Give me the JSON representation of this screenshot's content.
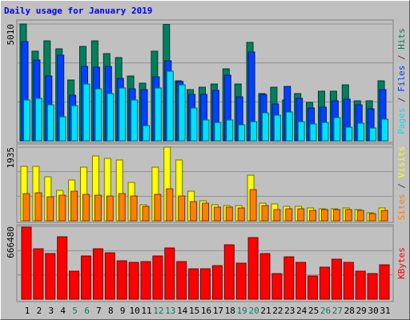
{
  "chart_data": [
    {
      "type": "bar",
      "title": "Daily usage for January 2019",
      "ylim": [
        0,
        5010
      ],
      "yticks": [
        5010
      ],
      "legend_separator": " / ",
      "series": [
        {
          "name": "Hits",
          "color": "#00805c",
          "values": [
            5010,
            3843,
            4289,
            3946,
            2608,
            4049,
            4289,
            3740,
            3569,
            2780,
            2471,
            3843,
            4990,
            2574,
            2196,
            2299,
            2436,
            3088,
            2436,
            4221,
            2025,
            2299,
            1750,
            2025,
            1647,
            2127,
            2127,
            2402,
            1716,
            1716,
            2574
          ]
        },
        {
          "name": "Files",
          "color": "#0040ff",
          "values": [
            4255,
            3466,
            2780,
            3672,
            1956,
            3191,
            3157,
            3191,
            2677,
            2230,
            2196,
            2745,
            3432,
            2539,
            1990,
            1990,
            2162,
            2814,
            1887,
            3809,
            1990,
            1578,
            2333,
            1819,
            1407,
            1441,
            1716,
            1784,
            1544,
            1373,
            2196
          ]
        },
        {
          "name": "Pages",
          "color": "#00e0ff",
          "values": [
            1750,
            1819,
            1544,
            1029,
            1510,
            2436,
            2230,
            2025,
            2265,
            1750,
            652,
            2265,
            2985,
            2402,
            1407,
            892,
            789,
            892,
            686,
            823,
            1201,
            1098,
            1235,
            823,
            721,
            789,
            995,
            583,
            755,
            549,
            926
          ]
        }
      ]
    },
    {
      "type": "bar",
      "ylim": [
        0,
        1935
      ],
      "yticks": [
        1935
      ],
      "legend_separator": " / ",
      "series": [
        {
          "name": "Visits",
          "color": "#ffff00",
          "values": [
            1430,
            1430,
            1157,
            799,
            1073,
            1409,
            1704,
            1641,
            1599,
            1010,
            421,
            1409,
            1935,
            1599,
            778,
            526,
            421,
            400,
            400,
            1199,
            463,
            442,
            379,
            379,
            337,
            316,
            316,
            337,
            295,
            210,
            337
          ]
        },
        {
          "name": "Sites",
          "color": "#ff8000",
          "values": [
            715,
            736,
            631,
            673,
            778,
            694,
            673,
            652,
            715,
            652,
            379,
            694,
            841,
            652,
            505,
            463,
            358,
            358,
            337,
            820,
            400,
            295,
            316,
            316,
            273,
            295,
            295,
            295,
            273,
            189,
            273
          ]
        }
      ]
    },
    {
      "type": "bar",
      "ylim": [
        0,
        666480
      ],
      "yticks": [
        666480
      ],
      "categories": [
        "1",
        "2",
        "3",
        "4",
        "5",
        "6",
        "7",
        "8",
        "9",
        "10",
        "11",
        "12",
        "13",
        "14",
        "15",
        "16",
        "17",
        "18",
        "19",
        "20",
        "21",
        "22",
        "23",
        "24",
        "25",
        "26",
        "27",
        "28",
        "29",
        "30",
        "31"
      ],
      "category_label_colors": [
        "#000000",
        "#000000",
        "#000000",
        "#000000",
        "#008060",
        "#008060",
        "#000000",
        "#000000",
        "#000000",
        "#000000",
        "#000000",
        "#008060",
        "#008060",
        "#000000",
        "#000000",
        "#000000",
        "#000000",
        "#000000",
        "#008060",
        "#008060",
        "#000000",
        "#000000",
        "#000000",
        "#000000",
        "#000000",
        "#008060",
        "#008060",
        "#000000",
        "#000000",
        "#000000",
        "#000000"
      ],
      "series": [
        {
          "name": "KBytes",
          "color": "#ff0000",
          "values": [
            659156,
            461410,
            417466,
            571262,
            256338,
            395495,
            461410,
            424790,
            351547,
            336899,
            344223,
            395495,
            468734,
            344223,
            278309,
            278309,
            307605,
            498030,
            329575,
            563938,
            417466,
            234366,
            388172,
            336899,
            212394,
            292958,
            366198,
            336899,
            256338,
            234366,
            314929
          ]
        }
      ]
    }
  ]
}
